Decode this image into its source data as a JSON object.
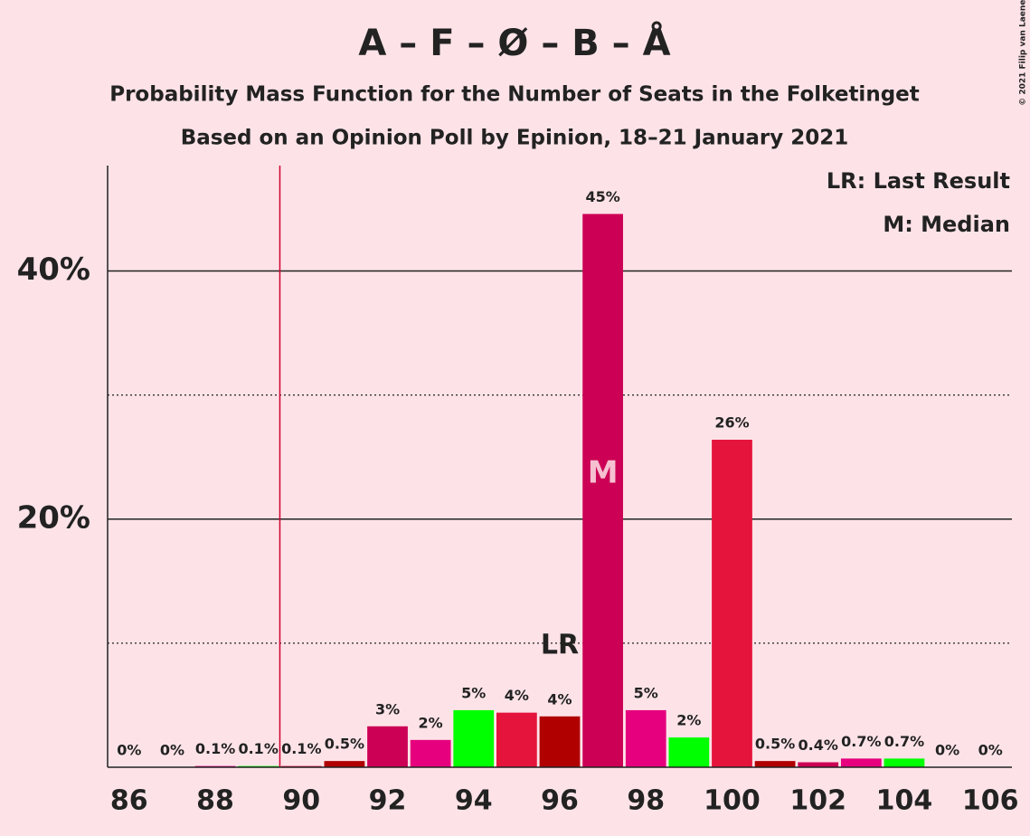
{
  "chart_data": {
    "type": "bar",
    "title": "A – F – Ø – B – Å",
    "subtitle": "Probability Mass Function for the Number of Seats in the Folketinget",
    "subtitle2": "Based on an Opinion Poll by Epinion, 18–21 January 2021",
    "copyright": "© 2021 Filip van Laenen",
    "legend": [
      "LR: Last Result",
      "M: Median"
    ],
    "x": [
      86,
      87,
      88,
      89,
      90,
      91,
      92,
      93,
      94,
      95,
      96,
      97,
      98,
      99,
      100,
      101,
      102,
      103,
      104,
      105,
      106
    ],
    "values": [
      0,
      0,
      0.1,
      0.1,
      0.1,
      0.5,
      3.3,
      2.2,
      4.6,
      4.4,
      4.1,
      44.6,
      4.6,
      2.4,
      26.4,
      0.5,
      0.4,
      0.7,
      0.7,
      0,
      0
    ],
    "value_labels": [
      "0%",
      "0%",
      "0.1%",
      "0.1%",
      "0.1%",
      "0.5%",
      "3%",
      "2%",
      "5%",
      "4%",
      "4%",
      "45%",
      "5%",
      "2%",
      "26%",
      "0.5%",
      "0.4%",
      "0.7%",
      "0.7%",
      "0%",
      "0%"
    ],
    "colors": [
      "#b00000",
      "#cc0055",
      "#e6007e",
      "#00ff00",
      "#e4143c",
      "#b00000",
      "#cc0055",
      "#e6007e",
      "#00ff00",
      "#e4143c",
      "#b00000",
      "#cc0055",
      "#e6007e",
      "#00ff00",
      "#e4143c",
      "#b00000",
      "#cc0055",
      "#e6007e",
      "#00ff00",
      "#e4143c",
      "#b00000"
    ],
    "xlim": [
      85.5,
      106.5
    ],
    "xticks": [
      86,
      88,
      90,
      92,
      94,
      96,
      98,
      100,
      102,
      104,
      106
    ],
    "ylim": [
      0,
      48.5
    ],
    "yticks": [
      {
        "value": 20,
        "label": "20%"
      },
      {
        "value": 40,
        "label": "40%"
      }
    ],
    "minor_yticks": [
      10,
      30
    ],
    "threshold": 89.5,
    "last_result": 96,
    "lr_label": "LR",
    "median": 97,
    "median_label": "M"
  }
}
